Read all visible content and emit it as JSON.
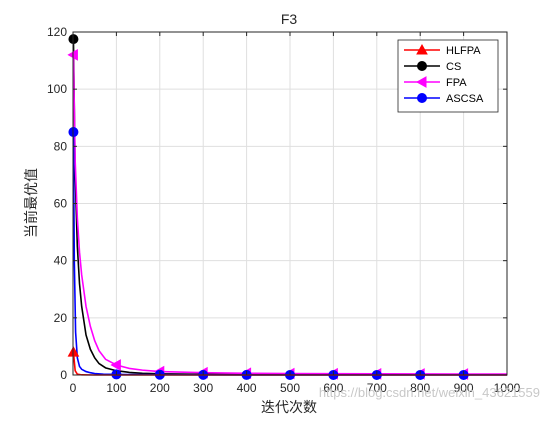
{
  "chart_data": {
    "type": "line",
    "title": "F3",
    "xlabel": "迭代次数",
    "ylabel": "当前最优值",
    "xlim": [
      0,
      1000
    ],
    "ylim": [
      0,
      120
    ],
    "x_ticks": [
      "0",
      "100",
      "200",
      "300",
      "400",
      "500",
      "600",
      "700",
      "800",
      "900",
      "1000"
    ],
    "y_ticks": [
      "0",
      "20",
      "40",
      "60",
      "80",
      "100",
      "120"
    ],
    "grid": true,
    "legend_position": "top-right",
    "series": [
      {
        "name": "HLFPA",
        "color": "#ff0000",
        "marker": "triangle-up",
        "x": [
          1,
          5,
          10,
          20,
          50,
          100,
          200,
          300,
          400,
          500,
          600,
          700,
          800,
          900,
          1000
        ],
        "y": [
          8,
          1.5,
          0.3,
          0.05,
          0,
          0,
          0,
          0,
          0,
          0,
          0,
          0,
          0,
          0,
          0
        ],
        "marker_x": [
          1
        ]
      },
      {
        "name": "CS",
        "color": "#000000",
        "marker": "circle",
        "x": [
          1,
          5,
          10,
          15,
          20,
          30,
          40,
          50,
          60,
          75,
          100,
          130,
          160,
          200,
          300,
          400,
          500,
          600,
          700,
          800,
          900,
          1000
        ],
        "y": [
          117.5,
          70,
          45,
          32,
          24,
          14,
          9,
          6,
          4,
          2.5,
          1.5,
          0.9,
          0.6,
          0.4,
          0.25,
          0.2,
          0.15,
          0.12,
          0.1,
          0.1,
          0.1,
          0.1
        ],
        "marker_x": [
          1
        ]
      },
      {
        "name": "FPA",
        "color": "#ff00ff",
        "marker": "triangle-left",
        "x": [
          1,
          5,
          10,
          15,
          20,
          30,
          40,
          50,
          60,
          75,
          100,
          130,
          160,
          200,
          300,
          400,
          500,
          600,
          700,
          800,
          900,
          1000
        ],
        "y": [
          112,
          75,
          55,
          43,
          35,
          24,
          17,
          12,
          8.5,
          5.5,
          3.5,
          2.3,
          1.7,
          1.2,
          0.8,
          0.6,
          0.5,
          0.45,
          0.4,
          0.38,
          0.35,
          0.33
        ],
        "marker_x": [
          1,
          100,
          200,
          300,
          400,
          500,
          600,
          700,
          800,
          900
        ]
      },
      {
        "name": "ASCSA",
        "color": "#0000ff",
        "marker": "circle",
        "x": [
          1,
          3,
          6,
          10,
          15,
          20,
          30,
          40,
          50,
          70,
          100,
          200,
          300,
          400,
          500,
          600,
          700,
          800,
          900,
          1000
        ],
        "y": [
          85,
          40,
          15,
          6,
          3,
          2,
          1.2,
          0.8,
          0.5,
          0.3,
          0.2,
          0.1,
          0.05,
          0.03,
          0.02,
          0.02,
          0.01,
          0.01,
          0.01,
          0.01
        ],
        "marker_x": [
          1,
          100,
          200,
          300,
          400,
          500,
          600,
          700,
          800,
          900
        ]
      }
    ]
  },
  "watermark": "https://blog.csdn.net/weixin_43621559"
}
